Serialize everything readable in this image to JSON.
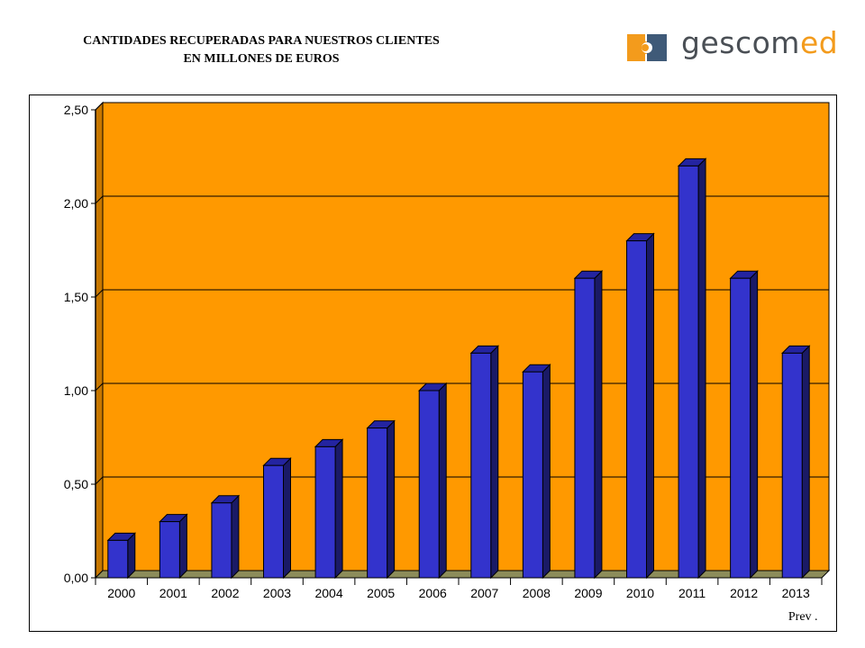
{
  "header": {
    "title_line1": "CANTIDADES RECUPERADAS PARA NUESTROS CLIENTES",
    "title_line2": "EN MILLONES DE EUROS"
  },
  "logo": {
    "text_a": "gescom",
    "text_b": "ed",
    "icon": "puzzle-piece-icon",
    "colors": {
      "orange": "#f39b1c",
      "slate": "#3f5a78",
      "gray": "#4a4f55"
    }
  },
  "chart_data": {
    "type": "bar",
    "title": "CANTIDADES RECUPERADAS PARA NUESTROS CLIENTES EN MILLONES DE EUROS",
    "categories": [
      "2000",
      "2001",
      "2002",
      "2003",
      "2004",
      "2005",
      "2006",
      "2007",
      "2008",
      "2009",
      "2010",
      "2011",
      "2012",
      "2013"
    ],
    "values": [
      0.2,
      0.3,
      0.4,
      0.6,
      0.7,
      0.8,
      1.0,
      1.2,
      1.1,
      1.6,
      1.8,
      2.2,
      1.6,
      1.2
    ],
    "ylim": [
      0,
      2.5
    ],
    "yticks": [
      "0,00",
      "0,50",
      "1,00",
      "1,50",
      "2,00",
      "2,50"
    ],
    "annotation": "Prev .",
    "grid": true,
    "colors": {
      "plot_bg": "#ff9900",
      "bar": "#3333cc",
      "bar_side": "#1a1a66",
      "floor": "#8c8c5a"
    }
  }
}
